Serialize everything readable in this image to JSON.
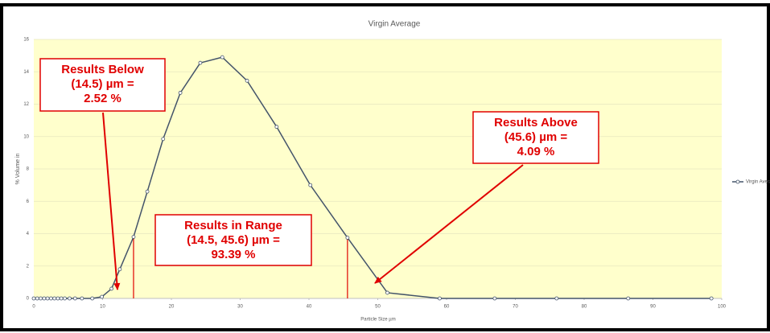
{
  "chart_data": {
    "type": "line",
    "title": "Virgin Average",
    "x_label": "Particle Size µm",
    "y_label": "% Volume in",
    "x": [
      0,
      0.5,
      1,
      1.5,
      2,
      2.5,
      3,
      3.5,
      4,
      4.5,
      5.2,
      6,
      7,
      8.5,
      9.9,
      11.3,
      12.5,
      14.5,
      16.5,
      18.8,
      21.3,
      24.2,
      27.4,
      31,
      35.3,
      40.2,
      45.6,
      51.4,
      59,
      67,
      76,
      86.4,
      98.5
    ],
    "series": [
      {
        "name": "Virgin Average",
        "color": "#44546a",
        "values": [
          0,
          0,
          0,
          0,
          0,
          0,
          0,
          0,
          0,
          0,
          0,
          0,
          0,
          0,
          0.1,
          0.6,
          1.8,
          3.8,
          6.6,
          9.85,
          12.7,
          14.55,
          14.9,
          13.45,
          10.6,
          7.0,
          3.75,
          0.35,
          0,
          0,
          0,
          0,
          0
        ]
      }
    ],
    "xlim": [
      0,
      100
    ],
    "xticks": [
      0,
      10,
      20,
      30,
      40,
      50,
      60,
      70,
      80,
      90,
      100
    ],
    "ylim": [
      0,
      16
    ],
    "yticks": [
      0,
      2,
      4,
      6,
      8,
      10,
      12,
      14,
      16
    ],
    "grid": true,
    "legend": "right",
    "range_lines": [
      14.5,
      45.6
    ],
    "range_line_color": "#e00000",
    "annotations": [
      {
        "lines": [
          "Results Below",
          "(14.5) µm =",
          "2.52 %"
        ]
      },
      {
        "lines": [
          "Results in Range",
          "(14.5, 45.6) µm =",
          "93.39 %"
        ]
      },
      {
        "lines": [
          "Results Above",
          "(45.6) µm =",
          "4.09 %"
        ]
      }
    ]
  }
}
